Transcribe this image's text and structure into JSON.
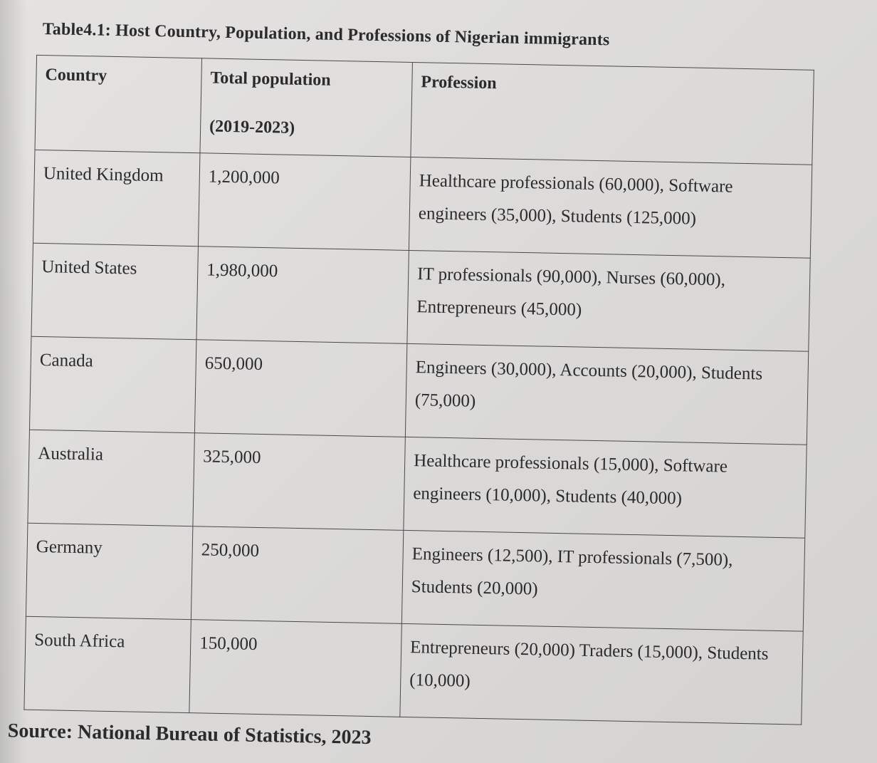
{
  "caption": "Table4.1: Host Country, Population, and Professions of Nigerian immigrants",
  "table": {
    "headers": {
      "country": "Country",
      "population_line1": "Total population",
      "population_line2": "(2019-2023)",
      "profession": "Profession"
    },
    "rows": [
      {
        "country": "United Kingdom",
        "population": "1,200,000",
        "profession": "Healthcare professionals (60,000), Software engineers (35,000), Students (125,000)"
      },
      {
        "country": "United States",
        "population": "1,980,000",
        "profession": "IT professionals (90,000), Nurses (60,000), Entrepreneurs (45,000)"
      },
      {
        "country": "Canada",
        "population": "650,000",
        "profession": "Engineers (30,000), Accounts (20,000), Students (75,000)"
      },
      {
        "country": "Australia",
        "population": "325,000",
        "profession": "Healthcare professionals (15,000), Software engineers (10,000), Students (40,000)"
      },
      {
        "country": "Germany",
        "population": "250,000",
        "profession": "Engineers (12,500), IT professionals (7,500), Students (20,000)"
      },
      {
        "country": "South Africa",
        "population": "150,000",
        "profession": "Entrepreneurs (20,000) Traders (15,000), Students (10,000)"
      }
    ]
  },
  "source": "Source: National Bureau of Statistics, 2023"
}
